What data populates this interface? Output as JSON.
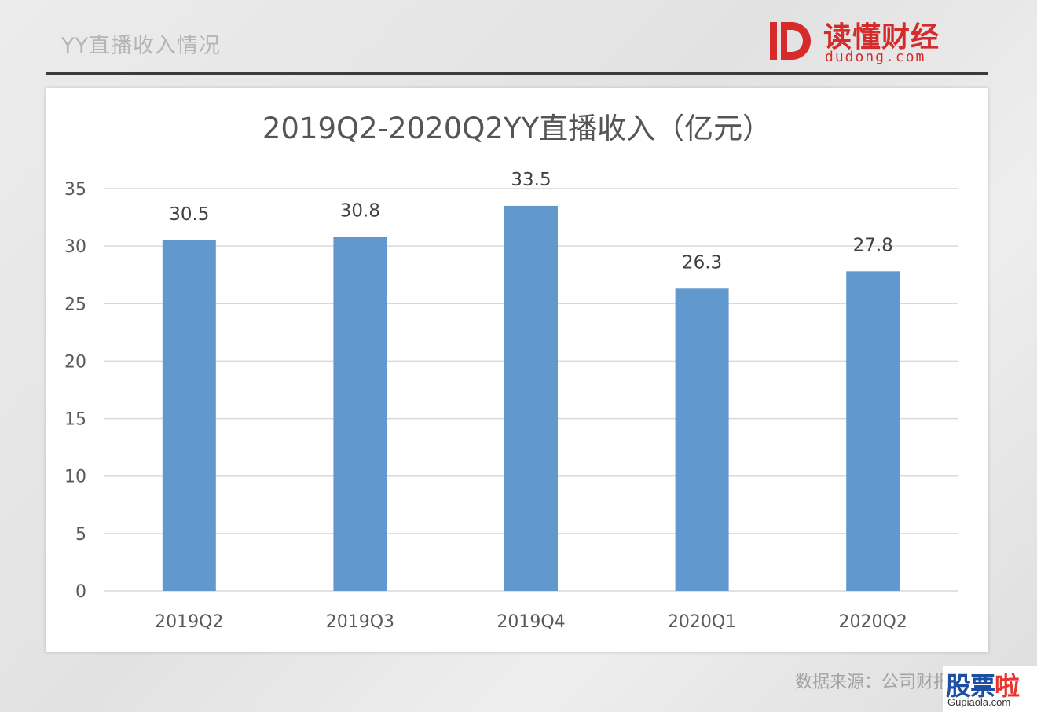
{
  "header": {
    "title": "YY直播收入情况"
  },
  "logo": {
    "name_cn": "读懂财经",
    "name_en": "dudong.com",
    "color": "#d52b2b"
  },
  "chart_data": {
    "type": "bar",
    "title": "2019Q2-2020Q2YY直播收入（亿元）",
    "xlabel": "",
    "ylabel": "",
    "categories": [
      "2019Q2",
      "2019Q3",
      "2019Q4",
      "2020Q1",
      "2020Q2"
    ],
    "values": [
      30.5,
      30.8,
      33.5,
      26.3,
      27.8
    ],
    "data_labels": [
      "30.5",
      "30.8",
      "33.5",
      "26.3",
      "27.8"
    ],
    "ylim": [
      0,
      35
    ],
    "yticks": [
      0,
      5,
      10,
      15,
      20,
      25,
      30,
      35
    ],
    "grid": true,
    "legend": "none",
    "bar_color": "#6199cf"
  },
  "source": {
    "text": "数据来源：公司财报"
  },
  "watermark": {
    "chars": [
      "股",
      "票",
      "啦"
    ],
    "domain": "Gupiaola.com"
  }
}
